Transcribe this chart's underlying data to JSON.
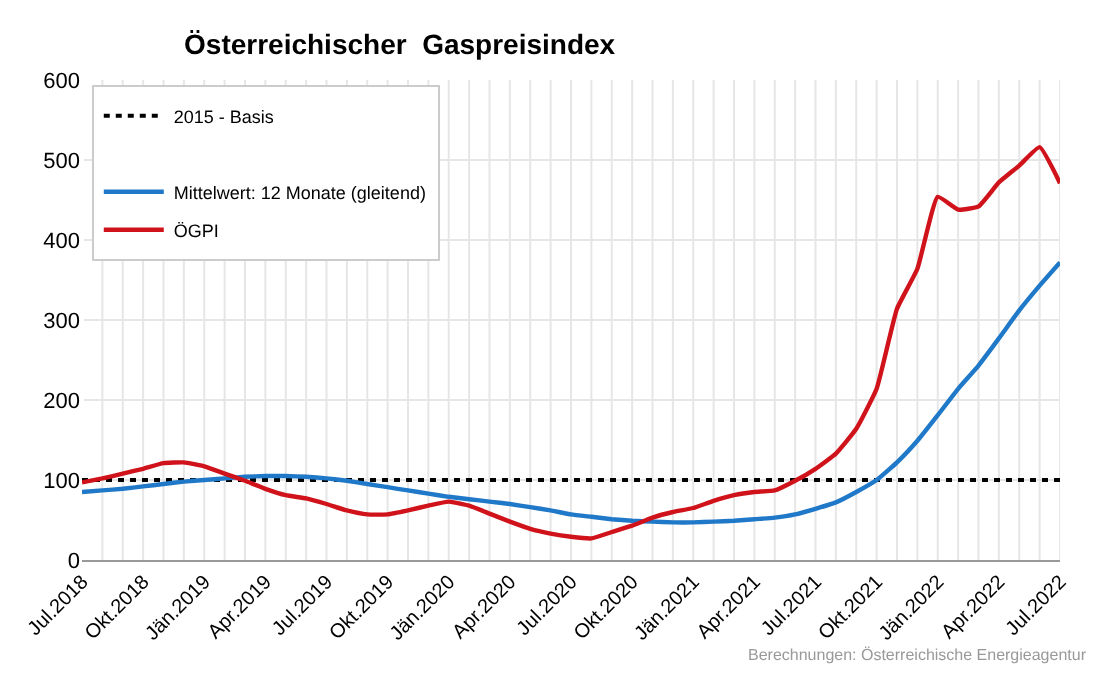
{
  "chart_data": {
    "type": "line",
    "title": "Österreichischer  Gaspreisindex",
    "categories": [
      "Jul.2018",
      null,
      null,
      "Okt.2018",
      null,
      null,
      "Jän.2019",
      null,
      null,
      "Apr.2019",
      null,
      null,
      "Jul.2019",
      null,
      null,
      "Okt.2019",
      null,
      null,
      "Jän.2020",
      null,
      null,
      "Apr.2020",
      null,
      null,
      "Jul.2020",
      null,
      null,
      "Okt.2020",
      null,
      null,
      "Jän.2021",
      null,
      null,
      "Apr.2021",
      null,
      null,
      "Jul.2021",
      null,
      null,
      "Okt.2021",
      null,
      null,
      "Jän.2022",
      null,
      null,
      "Apr.2022",
      null,
      null,
      "Jul.2022"
    ],
    "series": [
      {
        "name": "Mittelwert: 12 Monate (gleitend)",
        "color": "#1f78c8",
        "values": [
          85,
          87,
          89,
          92,
          95,
          98,
          100,
          102,
          104,
          105,
          105,
          104,
          102,
          99,
          95,
          91,
          87,
          83,
          79,
          76,
          73,
          70,
          66,
          62,
          57,
          54,
          51,
          49,
          48,
          47,
          47,
          48,
          49,
          51,
          53,
          57,
          64,
          72,
          85,
          100,
          122,
          149,
          181,
          214,
          243,
          277,
          312,
          343,
          372
        ]
      },
      {
        "name": "ÖGPI",
        "color": "#d0121b",
        "values": [
          97,
          102,
          108,
          114,
          121,
          122,
          117,
          108,
          99,
          89,
          81,
          77,
          70,
          62,
          57,
          57,
          62,
          68,
          73,
          68,
          58,
          48,
          39,
          33,
          29,
          27,
          35,
          43,
          53,
          60,
          65,
          74,
          81,
          85,
          87,
          99,
          114,
          133,
          164,
          214,
          314,
          364,
          454,
          438,
          442,
          472,
          493,
          516,
          471
        ]
      }
    ],
    "ref_lines": [
      {
        "axis": "y",
        "value": 100,
        "label": "2015 - Basis",
        "color": "#000000",
        "line_style": "dotted"
      }
    ],
    "ylim": [
      0,
      600
    ],
    "yticks": [
      0,
      100,
      200,
      300,
      400,
      500,
      600
    ],
    "grid": true,
    "legend": "top left",
    "line_style": "solid",
    "marker": "none",
    "annotations": [
      "Berechnungen: Österreichische Energieagentur"
    ]
  }
}
